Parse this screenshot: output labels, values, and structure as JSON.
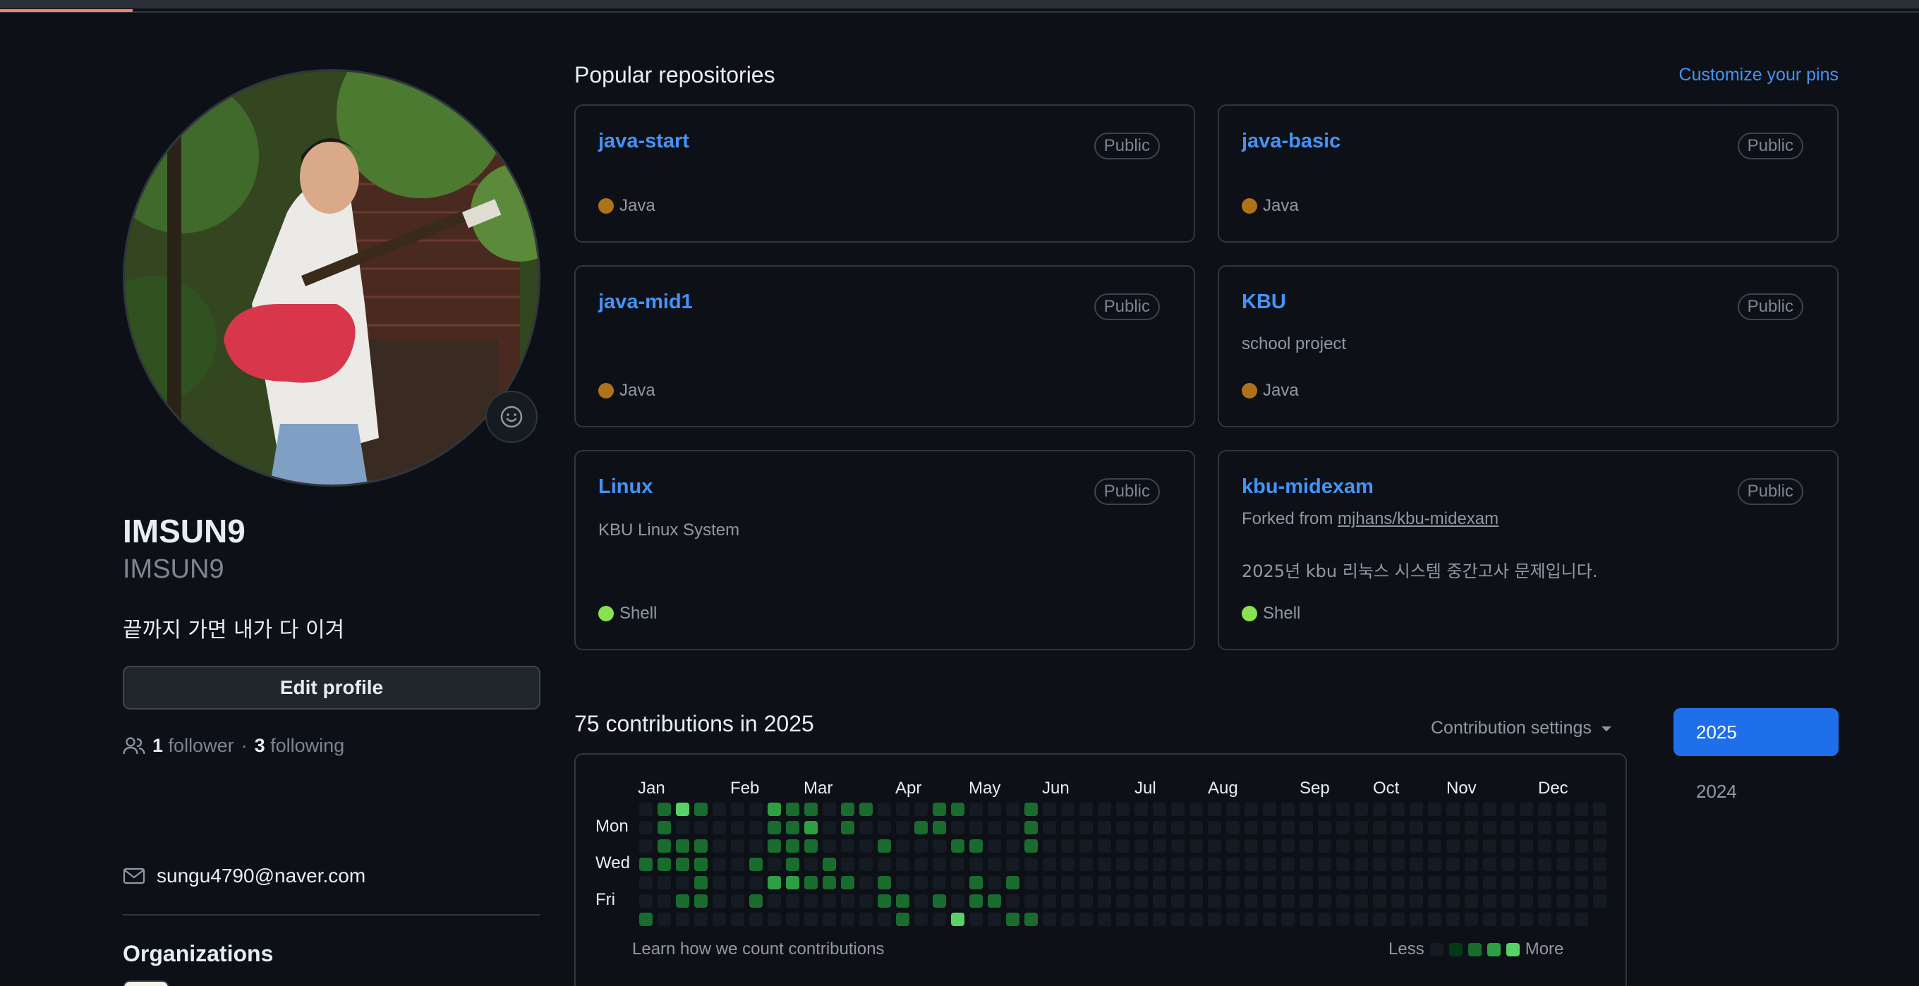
{
  "profile": {
    "name": "IMSUN9",
    "login": "IMSUN9",
    "bio": "끝까지 가면 내가 다 이겨",
    "edit_label": "Edit profile",
    "followers_count": "1",
    "followers_label": "follower",
    "separator": "·",
    "following_count": "3",
    "following_label": "following",
    "email": "sungu4790@naver.com",
    "organizations_title": "Organizations"
  },
  "pinned": {
    "title": "Popular repositories",
    "customize_label": "Customize your pins",
    "repos": [
      {
        "name": "java-start",
        "visibility": "Public",
        "description": "",
        "forked_prefix": "",
        "forked_link": "",
        "language": "Java",
        "language_color": "#b07219"
      },
      {
        "name": "java-basic",
        "visibility": "Public",
        "description": "",
        "forked_prefix": "",
        "forked_link": "",
        "language": "Java",
        "language_color": "#b07219"
      },
      {
        "name": "java-mid1",
        "visibility": "Public",
        "description": "",
        "forked_prefix": "",
        "forked_link": "",
        "language": "Java",
        "language_color": "#b07219"
      },
      {
        "name": "KBU",
        "visibility": "Public",
        "description": "school project",
        "forked_prefix": "",
        "forked_link": "",
        "language": "Java",
        "language_color": "#b07219"
      },
      {
        "name": "Linux",
        "visibility": "Public",
        "description": "KBU Linux System",
        "forked_prefix": "",
        "forked_link": "",
        "language": "Shell",
        "language_color": "#89e051"
      },
      {
        "name": "kbu-midexam",
        "visibility": "Public",
        "description": "2025년 kbu 리눅스 시스템 중간고사 문제입니다.",
        "forked_prefix": "Forked from",
        "forked_link": "mjhans/kbu-midexam",
        "language": "Shell",
        "language_color": "#89e051"
      }
    ]
  },
  "contributions": {
    "title": "75 contributions in 2025",
    "settings_label": "Contribution settings",
    "months": [
      "Jan",
      "Feb",
      "Mar",
      "Apr",
      "May",
      "Jun",
      "Jul",
      "Aug",
      "Sep",
      "Oct",
      "Nov",
      "Dec"
    ],
    "days": [
      "Mon",
      "Wed",
      "Fri"
    ],
    "learn_label": "Learn how we count contributions",
    "legend_less": "Less",
    "legend_more": "More",
    "level_colors": [
      "#151b23",
      "#033a16",
      "#196c2e",
      "#2ea043",
      "#56d364"
    ],
    "weeks": [
      [
        0,
        0,
        0,
        2,
        0,
        0,
        2
      ],
      [
        2,
        2,
        2,
        2,
        0,
        0,
        0
      ],
      [
        4,
        0,
        2,
        2,
        0,
        2,
        0
      ],
      [
        2,
        0,
        2,
        2,
        2,
        2,
        0
      ],
      [
        0,
        0,
        0,
        0,
        0,
        0,
        0
      ],
      [
        0,
        0,
        0,
        0,
        0,
        0,
        0
      ],
      [
        0,
        0,
        0,
        2,
        0,
        2,
        0
      ],
      [
        3,
        2,
        2,
        0,
        3,
        0,
        0
      ],
      [
        2,
        2,
        2,
        2,
        3,
        0,
        0
      ],
      [
        2,
        3,
        2,
        0,
        2,
        0,
        0
      ],
      [
        0,
        0,
        0,
        2,
        2,
        0,
        0
      ],
      [
        2,
        2,
        0,
        0,
        2,
        0,
        0
      ],
      [
        2,
        0,
        0,
        0,
        0,
        0,
        0
      ],
      [
        0,
        0,
        2,
        0,
        2,
        2,
        0
      ],
      [
        0,
        0,
        0,
        0,
        0,
        2,
        2
      ],
      [
        0,
        2,
        0,
        0,
        0,
        0,
        0
      ],
      [
        2,
        2,
        0,
        0,
        0,
        2,
        0
      ],
      [
        2,
        0,
        2,
        0,
        0,
        0,
        4
      ],
      [
        0,
        0,
        2,
        0,
        2,
        2,
        0
      ],
      [
        0,
        0,
        0,
        0,
        0,
        2,
        0
      ],
      [
        0,
        0,
        0,
        0,
        2,
        0,
        2
      ],
      [
        2,
        2,
        2,
        0,
        0,
        0,
        2
      ],
      [
        0,
        0,
        0,
        0,
        0,
        0,
        0
      ],
      [
        0,
        0,
        0,
        0,
        0,
        0,
        0
      ],
      [
        0,
        0,
        0,
        0,
        0,
        0,
        0
      ],
      [
        0,
        0,
        0,
        0,
        0,
        0,
        0
      ],
      [
        0,
        0,
        0,
        0,
        0,
        0,
        0
      ],
      [
        0,
        0,
        0,
        0,
        0,
        0,
        0
      ],
      [
        0,
        0,
        0,
        0,
        0,
        0,
        0
      ],
      [
        0,
        0,
        0,
        0,
        0,
        0,
        0
      ],
      [
        0,
        0,
        0,
        0,
        0,
        0,
        0
      ],
      [
        0,
        0,
        0,
        0,
        0,
        0,
        0
      ],
      [
        0,
        0,
        0,
        0,
        0,
        0,
        0
      ],
      [
        0,
        0,
        0,
        0,
        0,
        0,
        0
      ],
      [
        0,
        0,
        0,
        0,
        0,
        0,
        0
      ],
      [
        0,
        0,
        0,
        0,
        0,
        0,
        0
      ],
      [
        0,
        0,
        0,
        0,
        0,
        0,
        0
      ],
      [
        0,
        0,
        0,
        0,
        0,
        0,
        0
      ],
      [
        0,
        0,
        0,
        0,
        0,
        0,
        0
      ],
      [
        0,
        0,
        0,
        0,
        0,
        0,
        0
      ],
      [
        0,
        0,
        0,
        0,
        0,
        0,
        0
      ],
      [
        0,
        0,
        0,
        0,
        0,
        0,
        0
      ],
      [
        0,
        0,
        0,
        0,
        0,
        0,
        0
      ],
      [
        0,
        0,
        0,
        0,
        0,
        0,
        0
      ],
      [
        0,
        0,
        0,
        0,
        0,
        0,
        0
      ],
      [
        0,
        0,
        0,
        0,
        0,
        0,
        0
      ],
      [
        0,
        0,
        0,
        0,
        0,
        0,
        0
      ],
      [
        0,
        0,
        0,
        0,
        0,
        0,
        0
      ],
      [
        0,
        0,
        0,
        0,
        0,
        0,
        0
      ],
      [
        0,
        0,
        0,
        0,
        0,
        0,
        0
      ],
      [
        0,
        0,
        0,
        0,
        0,
        0,
        0
      ],
      [
        0,
        0,
        0,
        0,
        0,
        0,
        0
      ],
      [
        0,
        0,
        0,
        0,
        0,
        0
      ]
    ]
  },
  "years": [
    "2025",
    "2024"
  ]
}
